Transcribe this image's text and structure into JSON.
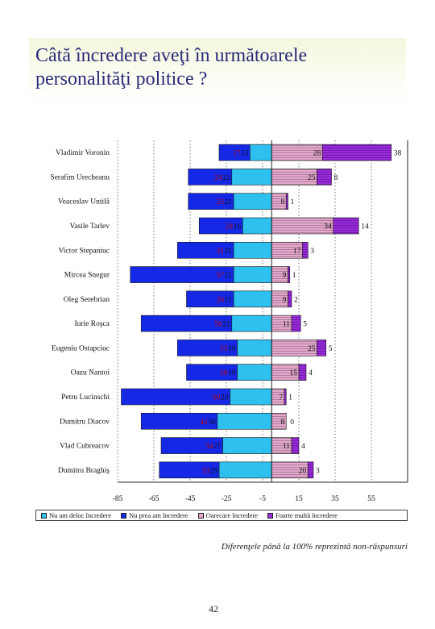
{
  "page": {
    "title": "Câtă încredere aveţi în următoarele personalităţi politice ?",
    "footnote": "Diferenţele până la 100% reprezintă non-răspunsuri",
    "page_number": "42"
  },
  "chart_data": {
    "type": "bar",
    "orientation": "horizontal-diverging",
    "categories": [
      "Vladimir Voronin",
      "Serafim Urecheanu",
      "Veaceslav Untilă",
      "Vasile Tarlev",
      "Victor Stepaniuc",
      "Mircea Snegur",
      "Oleg Serebrian",
      "Iurie Roşca",
      "Eugeniu Ostapciuc",
      "Oazu Nantoi",
      "Petru Lucinschi",
      "Dumitru Diacov",
      "Vlad Cubreacov",
      "Dumitru Braghiş"
    ],
    "series": [
      {
        "name": "Nu am deloc încredere",
        "color": "#2ec0ee",
        "values": [
          12,
          22,
          21,
          16,
          21,
          21,
          21,
          22,
          19,
          19,
          23,
          30,
          27,
          29
        ]
      },
      {
        "name": "Nu prea am încredere",
        "color": "#1428e6",
        "values": [
          17,
          24,
          25,
          24,
          31,
          57,
          26,
          50,
          33,
          28,
          60,
          42,
          34,
          33
        ]
      },
      {
        "name": "Oarecare încredere",
        "color": "#e6a8cc",
        "values": [
          28,
          25,
          8,
          34,
          17,
          9,
          9,
          11,
          25,
          15,
          7,
          8,
          11,
          20
        ]
      },
      {
        "name": "Foarte multă încredere",
        "color": "#9a2adc",
        "values": [
          38,
          8,
          1,
          14,
          3,
          1,
          2,
          5,
          5,
          4,
          1,
          0,
          4,
          3
        ]
      }
    ],
    "xlim": [
      -85,
      75
    ],
    "xticks": [
      -85,
      -65,
      -45,
      -25,
      -5,
      15,
      35,
      55
    ],
    "grid": "vertical dotted",
    "legend": "bottom"
  }
}
